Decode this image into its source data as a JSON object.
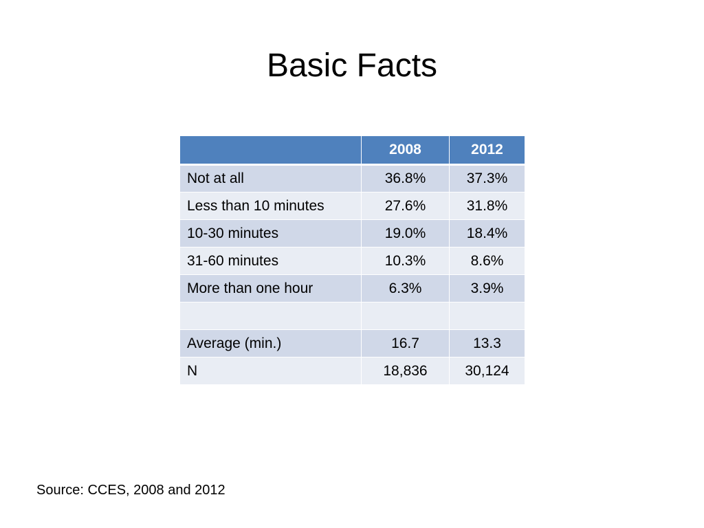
{
  "slide": {
    "title": "Basic Facts",
    "source": "Source:  CCES, 2008 and 2012"
  },
  "table": {
    "headers": [
      "",
      "2008",
      "2012"
    ],
    "rows": [
      [
        "Not at all",
        "36.8%",
        "37.3%"
      ],
      [
        "Less than 10 minutes",
        "27.6%",
        "31.8%"
      ],
      [
        "10-30 minutes",
        "19.0%",
        "18.4%"
      ],
      [
        "31-60 minutes",
        "10.3%",
        "8.6%"
      ],
      [
        "More than one hour",
        "6.3%",
        "3.9%"
      ],
      [
        "",
        "",
        ""
      ],
      [
        "Average (min.)",
        "16.7",
        "13.3"
      ],
      [
        "N",
        "18,836",
        "30,124"
      ]
    ]
  },
  "colors": {
    "header_bg": "#4f81bd",
    "row_odd_bg": "#d0d8e8",
    "row_even_bg": "#e9edf4"
  }
}
